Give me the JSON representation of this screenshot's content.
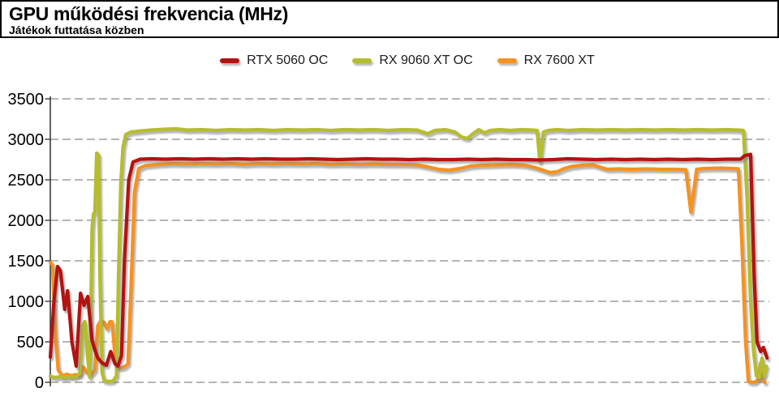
{
  "header": {
    "title": "GPU működési frekvencia (MHz)",
    "subtitle": "Játékok futtatása közben"
  },
  "chart_data": {
    "type": "line",
    "title": "GPU működési frekvencia (MHz)",
    "subtitle": "Játékok futtatása közben",
    "xlabel": "",
    "ylabel": "MHz",
    "x_range": [
      0,
      100
    ],
    "ylim": [
      0,
      3500
    ],
    "yticks": [
      0,
      500,
      1000,
      1500,
      2000,
      2500,
      3000,
      3500
    ],
    "grid": "horizontal-dashed",
    "gridline_color": "#6b6b6b",
    "legend_position": "top-center",
    "x_axis_labels_visible": false,
    "series": [
      {
        "name": "RTX 5060 OC",
        "color": "#b31310",
        "points": [
          [
            0,
            310
          ],
          [
            0.5,
            1000
          ],
          [
            1.0,
            1430
          ],
          [
            1.4,
            1380
          ],
          [
            2.0,
            900
          ],
          [
            2.4,
            1130
          ],
          [
            3.0,
            500
          ],
          [
            3.6,
            200
          ],
          [
            4.2,
            1100
          ],
          [
            4.7,
            950
          ],
          [
            5.2,
            1060
          ],
          [
            5.8,
            520
          ],
          [
            6.2,
            400
          ],
          [
            6.6,
            300
          ],
          [
            7.2,
            240
          ],
          [
            7.8,
            210
          ],
          [
            8.4,
            380
          ],
          [
            9.0,
            230
          ],
          [
            9.4,
            200
          ],
          [
            9.9,
            330
          ],
          [
            10.3,
            1500
          ],
          [
            10.9,
            2500
          ],
          [
            11.5,
            2720
          ],
          [
            12.5,
            2755
          ],
          [
            14,
            2760
          ],
          [
            16,
            2755
          ],
          [
            18,
            2760
          ],
          [
            20,
            2755
          ],
          [
            22,
            2760
          ],
          [
            24,
            2755
          ],
          [
            26,
            2760
          ],
          [
            28,
            2755
          ],
          [
            30,
            2760
          ],
          [
            32,
            2755
          ],
          [
            34,
            2755
          ],
          [
            36,
            2760
          ],
          [
            38,
            2755
          ],
          [
            40,
            2750
          ],
          [
            42,
            2755
          ],
          [
            44,
            2760
          ],
          [
            46,
            2755
          ],
          [
            48,
            2755
          ],
          [
            50,
            2750
          ],
          [
            52,
            2755
          ],
          [
            54,
            2750
          ],
          [
            56,
            2750
          ],
          [
            58,
            2755
          ],
          [
            60,
            2750
          ],
          [
            62,
            2755
          ],
          [
            64,
            2750
          ],
          [
            66,
            2750
          ],
          [
            68,
            2745
          ],
          [
            70,
            2750
          ],
          [
            72,
            2760
          ],
          [
            74,
            2755
          ],
          [
            76,
            2750
          ],
          [
            78,
            2755
          ],
          [
            80,
            2750
          ],
          [
            82,
            2755
          ],
          [
            84,
            2750
          ],
          [
            86,
            2755
          ],
          [
            88,
            2750
          ],
          [
            90,
            2755
          ],
          [
            92,
            2750
          ],
          [
            94,
            2755
          ],
          [
            96,
            2755
          ],
          [
            96.6,
            2800
          ],
          [
            97.4,
            2815
          ],
          [
            97.9,
            1300
          ],
          [
            98.3,
            500
          ],
          [
            98.8,
            380
          ],
          [
            99.2,
            430
          ],
          [
            99.7,
            300
          ]
        ]
      },
      {
        "name": "RX 9060 XT OC",
        "color": "#b5bd2b",
        "points": [
          [
            0,
            75
          ],
          [
            0.7,
            60
          ],
          [
            1.4,
            70
          ],
          [
            2.1,
            60
          ],
          [
            2.8,
            70
          ],
          [
            3.5,
            65
          ],
          [
            4.1,
            110
          ],
          [
            4.5,
            700
          ],
          [
            4.8,
            750
          ],
          [
            5.2,
            300
          ],
          [
            5.5,
            60
          ],
          [
            5.8,
            1900
          ],
          [
            6.0,
            2080
          ],
          [
            6.2,
            2100
          ],
          [
            6.45,
            2830
          ],
          [
            6.7,
            2810
          ],
          [
            6.9,
            1300
          ],
          [
            7.2,
            120
          ],
          [
            7.5,
            20
          ],
          [
            8.1,
            10
          ],
          [
            8.7,
            15
          ],
          [
            9.2,
            80
          ],
          [
            9.5,
            1400
          ],
          [
            9.8,
            2450
          ],
          [
            10.1,
            2900
          ],
          [
            10.5,
            3060
          ],
          [
            11.2,
            3090
          ],
          [
            12.2,
            3100
          ],
          [
            14,
            3115
          ],
          [
            16,
            3125
          ],
          [
            17.5,
            3130
          ],
          [
            19,
            3115
          ],
          [
            21,
            3120
          ],
          [
            23,
            3110
          ],
          [
            25,
            3120
          ],
          [
            27,
            3115
          ],
          [
            29,
            3120
          ],
          [
            31,
            3110
          ],
          [
            33,
            3120
          ],
          [
            35,
            3115
          ],
          [
            37,
            3120
          ],
          [
            39,
            3110
          ],
          [
            41,
            3120
          ],
          [
            43,
            3115
          ],
          [
            45,
            3120
          ],
          [
            47,
            3110
          ],
          [
            49,
            3120
          ],
          [
            51,
            3115
          ],
          [
            52.5,
            3070
          ],
          [
            53.5,
            3110
          ],
          [
            55,
            3120
          ],
          [
            56.3,
            3090
          ],
          [
            57.2,
            3030
          ],
          [
            58.0,
            3010
          ],
          [
            58.8,
            3070
          ],
          [
            59.6,
            3120
          ],
          [
            60.4,
            3080
          ],
          [
            61.2,
            3110
          ],
          [
            62.5,
            3120
          ],
          [
            64,
            3110
          ],
          [
            65.5,
            3120
          ],
          [
            67.0,
            3115
          ],
          [
            67.7,
            3110
          ],
          [
            68.1,
            2720
          ],
          [
            68.6,
            3090
          ],
          [
            69.3,
            3110
          ],
          [
            70.5,
            3120
          ],
          [
            72,
            3110
          ],
          [
            74,
            3120
          ],
          [
            76,
            3115
          ],
          [
            78,
            3120
          ],
          [
            80,
            3115
          ],
          [
            82,
            3120
          ],
          [
            84,
            3115
          ],
          [
            86,
            3120
          ],
          [
            88,
            3115
          ],
          [
            90,
            3120
          ],
          [
            92,
            3115
          ],
          [
            94,
            3120
          ],
          [
            95.5,
            3115
          ],
          [
            96.4,
            3110
          ],
          [
            96.9,
            2300
          ],
          [
            97.4,
            1000
          ],
          [
            97.8,
            400
          ],
          [
            98.2,
            80
          ],
          [
            98.6,
            60
          ],
          [
            99.0,
            300
          ],
          [
            99.3,
            80
          ],
          [
            99.6,
            200
          ]
        ]
      },
      {
        "name": "RX 7600 XT",
        "color": "#f6921d",
        "points": [
          [
            0,
            1480
          ],
          [
            0.3,
            1450
          ],
          [
            0.7,
            600
          ],
          [
            1.1,
            150
          ],
          [
            1.7,
            80
          ],
          [
            2.3,
            100
          ],
          [
            2.9,
            80
          ],
          [
            3.5,
            95
          ],
          [
            4.1,
            85
          ],
          [
            4.6,
            190
          ],
          [
            5.1,
            120
          ],
          [
            5.7,
            100
          ],
          [
            6.2,
            150
          ],
          [
            6.6,
            700
          ],
          [
            7.0,
            755
          ],
          [
            7.5,
            740
          ],
          [
            7.9,
            660
          ],
          [
            8.3,
            750
          ],
          [
            8.6,
            745
          ],
          [
            8.9,
            420
          ],
          [
            9.2,
            200
          ],
          [
            9.7,
            175
          ],
          [
            10.3,
            190
          ],
          [
            10.8,
            230
          ],
          [
            11.2,
            1100
          ],
          [
            11.7,
            2350
          ],
          [
            12.3,
            2640
          ],
          [
            13.2,
            2675
          ],
          [
            15,
            2690
          ],
          [
            17,
            2700
          ],
          [
            19,
            2695
          ],
          [
            21,
            2700
          ],
          [
            23,
            2695
          ],
          [
            25,
            2700
          ],
          [
            27,
            2690
          ],
          [
            29,
            2700
          ],
          [
            31,
            2695
          ],
          [
            33,
            2700
          ],
          [
            35,
            2695
          ],
          [
            37,
            2700
          ],
          [
            39,
            2690
          ],
          [
            41,
            2695
          ],
          [
            43,
            2690
          ],
          [
            45,
            2695
          ],
          [
            47,
            2690
          ],
          [
            49,
            2690
          ],
          [
            51,
            2685
          ],
          [
            52.5,
            2660
          ],
          [
            54,
            2630
          ],
          [
            55.5,
            2620
          ],
          [
            57,
            2640
          ],
          [
            58.5,
            2670
          ],
          [
            60,
            2680
          ],
          [
            62,
            2685
          ],
          [
            64,
            2690
          ],
          [
            66,
            2680
          ],
          [
            67.5,
            2650
          ],
          [
            68.5,
            2620
          ],
          [
            69.5,
            2590
          ],
          [
            70.5,
            2600
          ],
          [
            71.5,
            2640
          ],
          [
            72.5,
            2665
          ],
          [
            74,
            2680
          ],
          [
            75.5,
            2685
          ],
          [
            76.5,
            2655
          ],
          [
            77.5,
            2630
          ],
          [
            79,
            2635
          ],
          [
            81,
            2630
          ],
          [
            83,
            2635
          ],
          [
            85,
            2630
          ],
          [
            87,
            2630
          ],
          [
            88.4,
            2625
          ],
          [
            89.1,
            2100
          ],
          [
            89.9,
            2630
          ],
          [
            91,
            2640
          ],
          [
            93,
            2645
          ],
          [
            95,
            2640
          ],
          [
            95.7,
            2635
          ],
          [
            96.2,
            1700
          ],
          [
            96.7,
            500
          ],
          [
            97.1,
            10
          ],
          [
            97.6,
            0
          ],
          [
            98.1,
            5
          ],
          [
            98.5,
            40
          ],
          [
            98.8,
            240
          ],
          [
            99.1,
            30
          ],
          [
            99.4,
            0
          ]
        ]
      }
    ]
  }
}
